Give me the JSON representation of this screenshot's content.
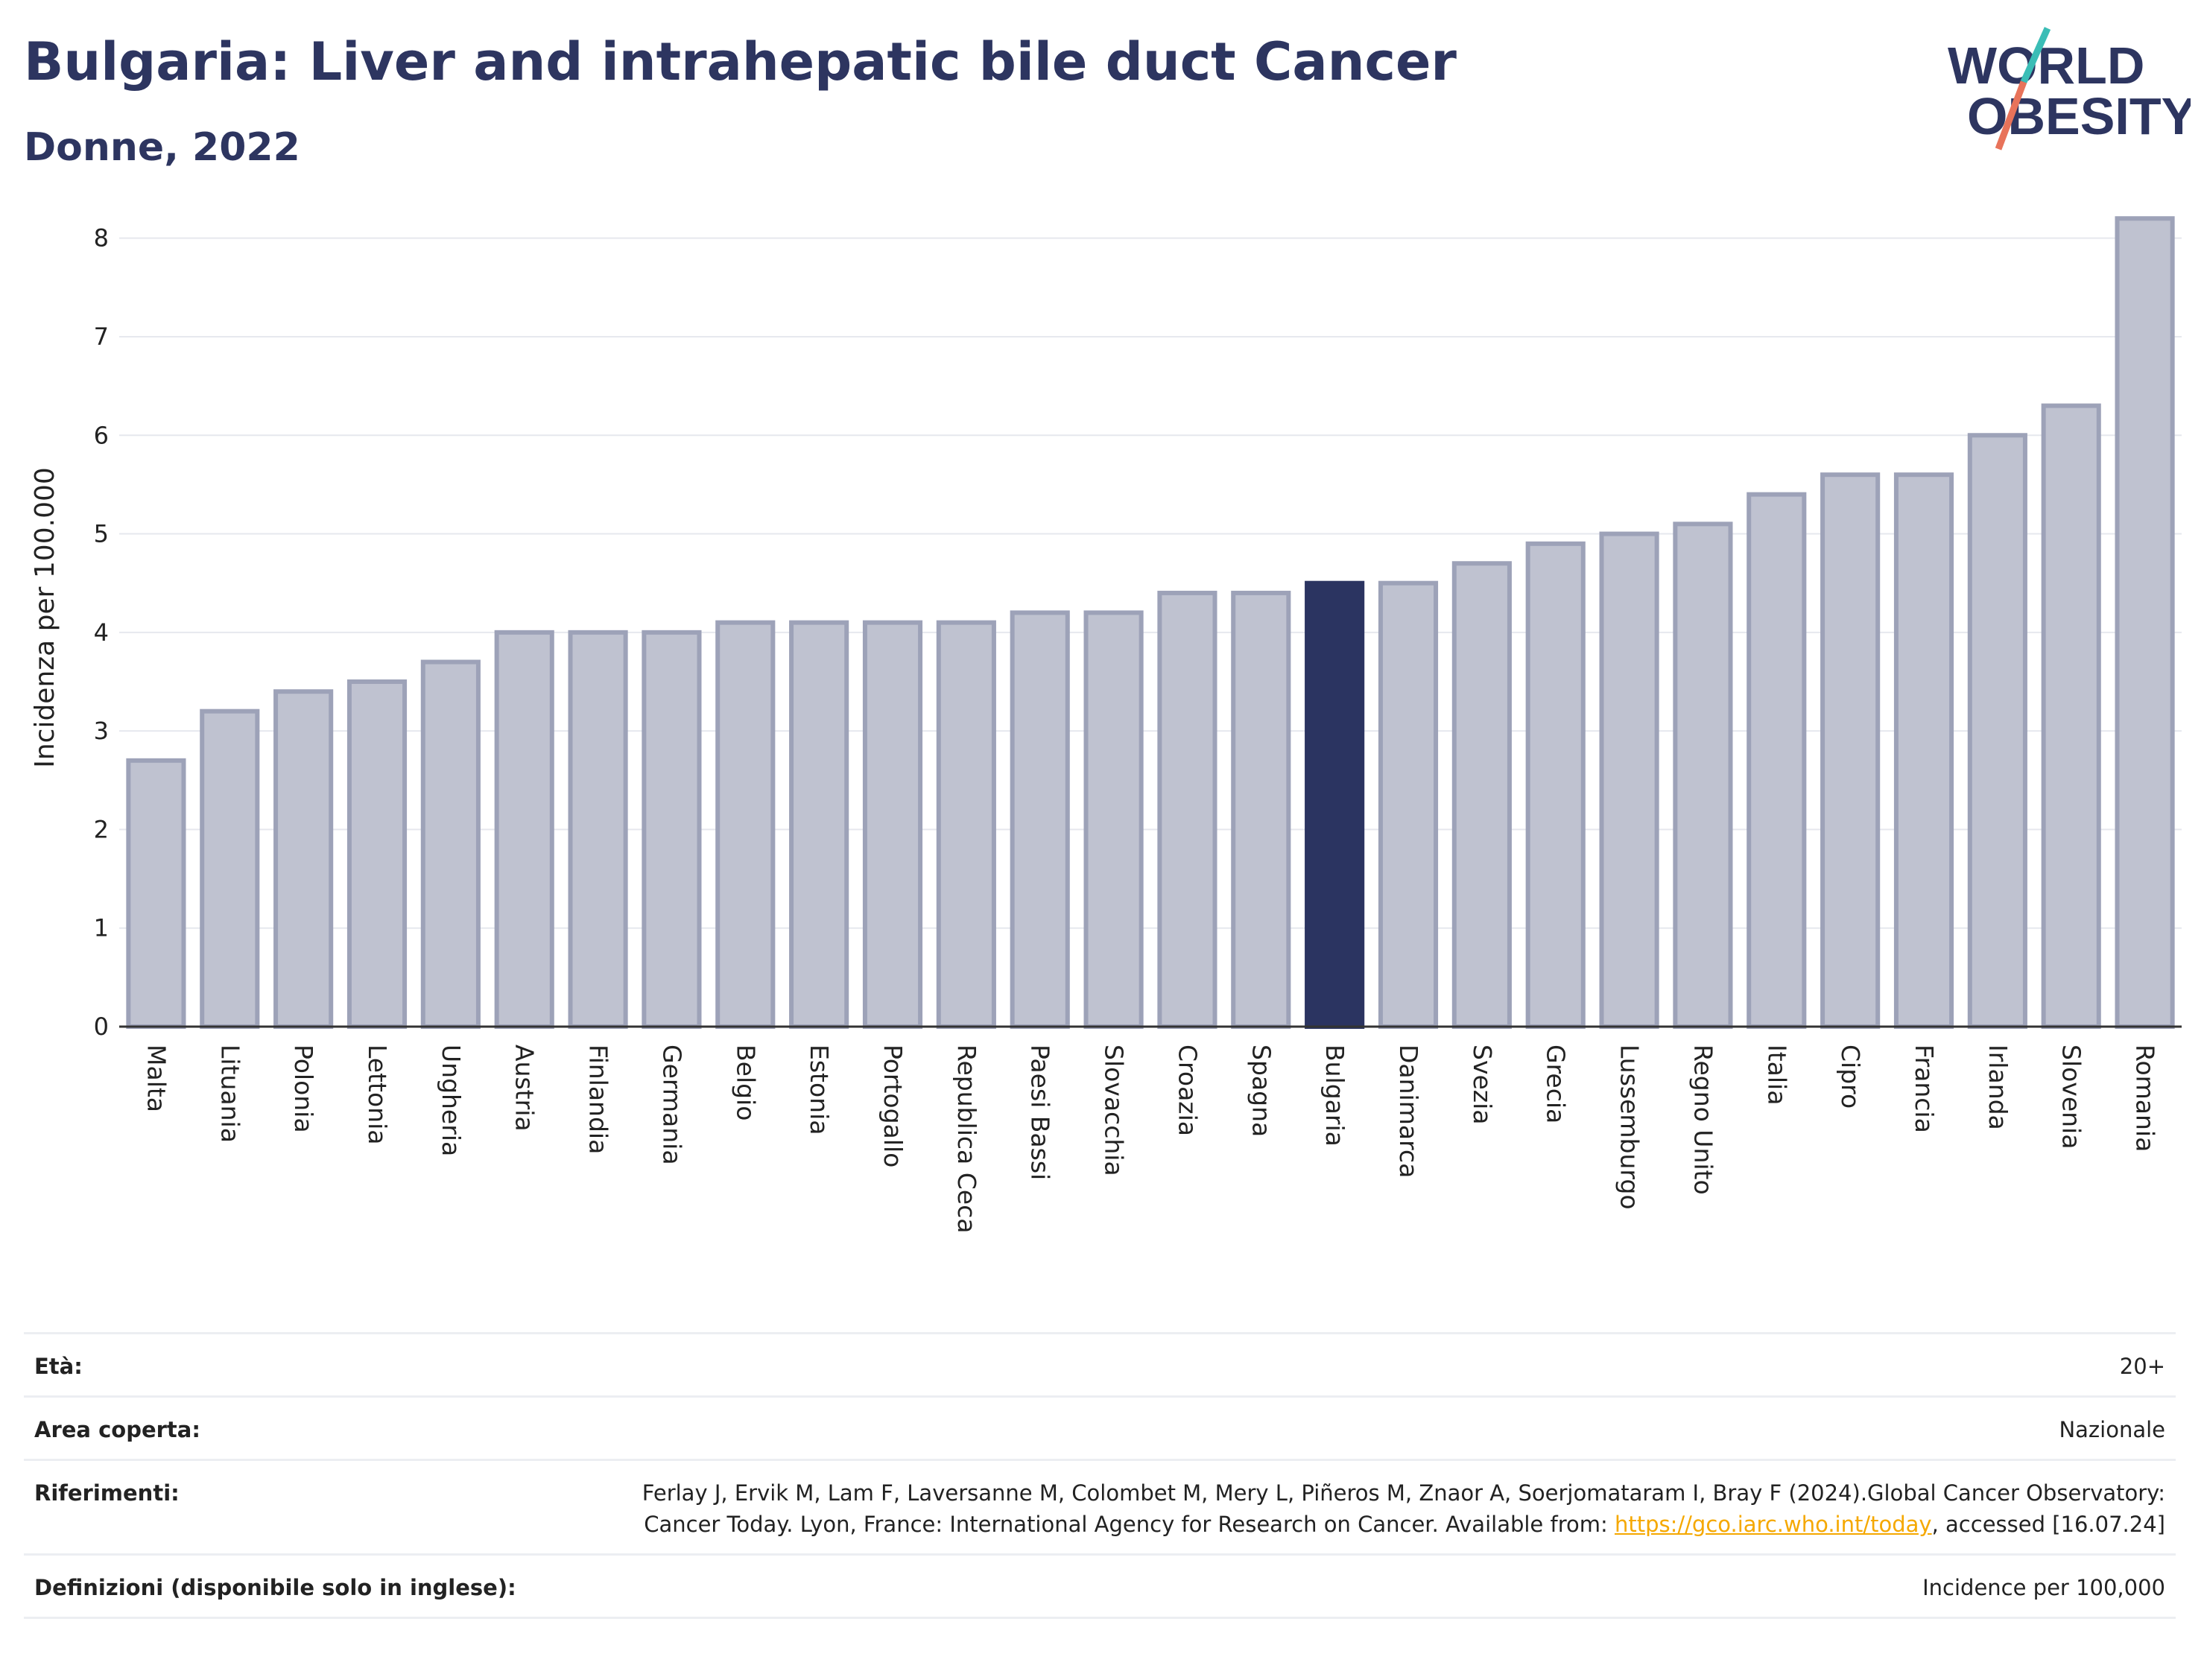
{
  "header": {
    "title": "Bulgaria: Liver and intrahepatic bile duct Cancer",
    "subtitle": "Donne, 2022"
  },
  "logo": {
    "line1": "WORLD",
    "line2": "OBESITY",
    "colors": {
      "text": "#2d3560",
      "slash_top": "#3bbdb6",
      "slash_bottom": "#e8735a"
    }
  },
  "chart_data": {
    "type": "bar",
    "ylabel": "Incidenza per 100.000",
    "ylim": [
      0,
      8.3
    ],
    "yticks": [
      0,
      1,
      2,
      3,
      4,
      5,
      6,
      7,
      8
    ],
    "grid": true,
    "highlight": "Bulgaria",
    "colors": {
      "bar": "#bfc2d0",
      "bar_edge": "#9da2b8",
      "highlight": "#2b3461",
      "grid": "#e6e8ee",
      "axis": "#333333"
    },
    "categories": [
      "Malta",
      "Lituania",
      "Polonia",
      "Lettonia",
      "Ungheria",
      "Austria",
      "Finlandia",
      "Germania",
      "Belgio",
      "Estonia",
      "Portogallo",
      "Republica Ceca",
      "Paesi Bassi",
      "Slovacchia",
      "Croazia",
      "Spagna",
      "Bulgaria",
      "Danimarca",
      "Svezia",
      "Grecia",
      "Lussemburgo",
      "Regno Unito",
      "Italia",
      "Cipro",
      "Francia",
      "Irlanda",
      "Slovenia",
      "Romania"
    ],
    "values": [
      2.7,
      3.2,
      3.4,
      3.5,
      3.7,
      4.0,
      4.0,
      4.0,
      4.1,
      4.1,
      4.1,
      4.1,
      4.2,
      4.2,
      4.4,
      4.4,
      4.5,
      4.5,
      4.7,
      4.9,
      5.0,
      5.1,
      5.4,
      5.6,
      5.6,
      6.0,
      6.3,
      8.2
    ]
  },
  "meta": {
    "age": {
      "label": "Età:",
      "value": "20+"
    },
    "area": {
      "label": "Area coperta:",
      "value": "Nazionale"
    },
    "references": {
      "label": "Riferimenti:",
      "text_before": "Ferlay J, Ervik M, Lam F, Laversanne M, Colombet M, Mery L, Piñeros M, Znaor A, Soerjomataram I, Bray F (2024).Global Cancer Observatory: Cancer Today. Lyon, France: International Agency for Research on Cancer. Available from: ",
      "link": "https://gco.iarc.who.int/today",
      "text_after": ", accessed [16.07.24]"
    },
    "definitions": {
      "label": "Definizioni (disponibile solo in inglese):",
      "value": "Incidence per 100,000"
    }
  }
}
